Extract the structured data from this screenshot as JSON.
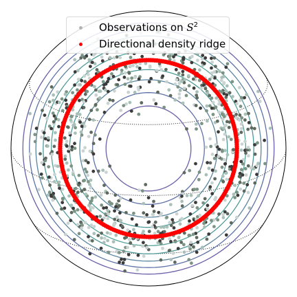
{
  "chart_data": {
    "type": "scatter",
    "projection": "orthographic sphere",
    "legend": {
      "placement": "top-center",
      "entries": [
        {
          "label": "Observations on ",
          "math": "S",
          "sup": "2",
          "color": "#b4b4b4"
        },
        {
          "label": "Directional density ridge",
          "color": "#ff0000"
        }
      ]
    },
    "series": [
      {
        "name": "Observations on S^2",
        "kind": "points",
        "description_values": {
          "ring_center_deg": [
            0,
            20
          ],
          "ring_radius_deg": 40,
          "angular_spread_deg": 9,
          "n_points": 1000
        },
        "colors": [
          "#3b3b3b",
          "#5e6a60",
          "#7c9485",
          "#a8c0b8",
          "#c9d3d1"
        ]
      },
      {
        "name": "Directional density ridge",
        "kind": "ridge",
        "color": "#ff0000",
        "ring_center_deg": [
          0,
          20
        ],
        "ring_radius_deg": 40
      }
    ],
    "density_contours": {
      "center_deg": [
        0,
        20
      ],
      "levels_deg": [
        18,
        24,
        30,
        35,
        45,
        50,
        55,
        60,
        66
      ],
      "colors": [
        "#6a5fa8",
        "#5f72a8",
        "#5a85a0",
        "#4f9a98",
        "#55a39a",
        "#4f9a98",
        "#5a85a0",
        "#5f72a8",
        "#6a5fa8"
      ]
    },
    "graticule": {
      "parallels_deg": [
        -30,
        0,
        30
      ],
      "meridian_dotted": true,
      "grid": true
    }
  }
}
